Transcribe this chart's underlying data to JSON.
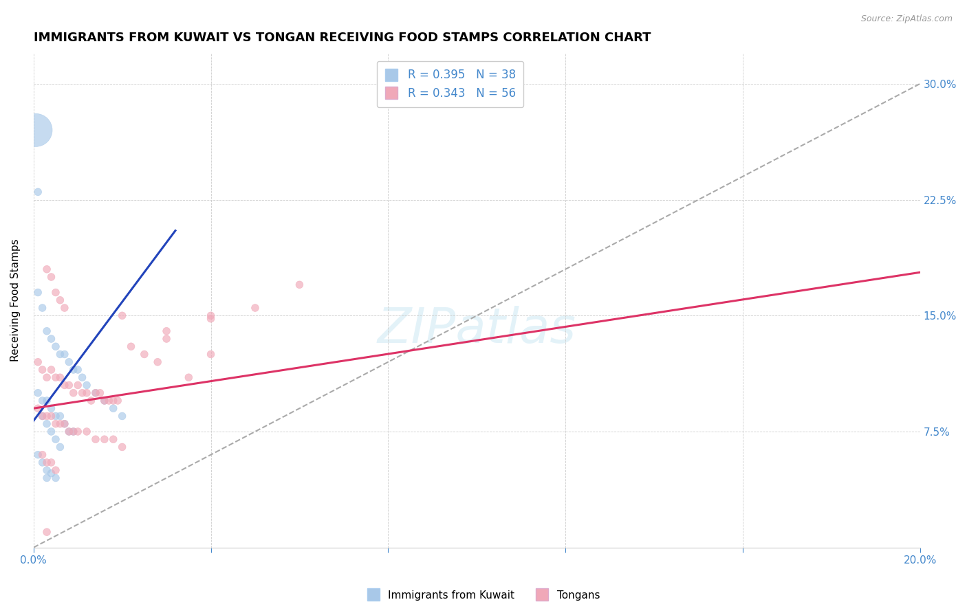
{
  "title": "IMMIGRANTS FROM KUWAIT VS TONGAN RECEIVING FOOD STAMPS CORRELATION CHART",
  "source": "Source: ZipAtlas.com",
  "ylabel": "Receiving Food Stamps",
  "xlim": [
    0.0,
    0.2
  ],
  "ylim": [
    0.0,
    0.32
  ],
  "x_ticks": [
    0.0,
    0.04,
    0.08,
    0.12,
    0.16,
    0.2
  ],
  "y_ticks": [
    0.0,
    0.075,
    0.15,
    0.225,
    0.3
  ],
  "y_tick_labels_right": [
    "",
    "7.5%",
    "15.0%",
    "22.5%",
    "30.0%"
  ],
  "grid_color": "#cccccc",
  "background_color": "#ffffff",
  "kuwait_color": "#a8c8e8",
  "tongan_color": "#f0a8b8",
  "kuwait_line_color": "#2244bb",
  "tongan_line_color": "#dd3366",
  "ref_line_color": "#aaaaaa",
  "axis_label_color": "#4488cc",
  "title_fontsize": 13,
  "axis_fontsize": 11,
  "legend_fontsize": 12,
  "kuwait_r": "0.395",
  "kuwait_n": "38",
  "tongan_r": "0.343",
  "tongan_n": "56",
  "kuwait_line_x0": 0.0,
  "kuwait_line_y0": 0.082,
  "kuwait_line_x1": 0.032,
  "kuwait_line_y1": 0.205,
  "tongan_line_x0": 0.0,
  "tongan_line_y0": 0.09,
  "tongan_line_x1": 0.2,
  "tongan_line_y1": 0.178,
  "kuwait_points_x": [
    0.001,
    0.002,
    0.003,
    0.004,
    0.005,
    0.006,
    0.007,
    0.008,
    0.009,
    0.01,
    0.011,
    0.012,
    0.014,
    0.016,
    0.018,
    0.02,
    0.002,
    0.003,
    0.004,
    0.005,
    0.006,
    0.007,
    0.008,
    0.009,
    0.001,
    0.002,
    0.003,
    0.004,
    0.005,
    0.006,
    0.001,
    0.002,
    0.003,
    0.003,
    0.004,
    0.005,
    0.0005,
    0.001
  ],
  "kuwait_points_y": [
    0.165,
    0.155,
    0.14,
    0.135,
    0.13,
    0.125,
    0.125,
    0.12,
    0.115,
    0.115,
    0.11,
    0.105,
    0.1,
    0.095,
    0.09,
    0.085,
    0.095,
    0.095,
    0.09,
    0.085,
    0.085,
    0.08,
    0.075,
    0.075,
    0.1,
    0.085,
    0.08,
    0.075,
    0.07,
    0.065,
    0.06,
    0.055,
    0.05,
    0.045,
    0.048,
    0.045,
    0.27,
    0.23
  ],
  "kuwait_sizes": [
    60,
    60,
    60,
    60,
    60,
    60,
    60,
    60,
    60,
    60,
    60,
    60,
    60,
    60,
    60,
    60,
    60,
    60,
    60,
    60,
    60,
    60,
    60,
    60,
    60,
    60,
    60,
    60,
    60,
    60,
    60,
    60,
    60,
    60,
    60,
    60,
    1200,
    60
  ],
  "tongan_points_x": [
    0.001,
    0.002,
    0.003,
    0.004,
    0.005,
    0.006,
    0.007,
    0.008,
    0.009,
    0.01,
    0.011,
    0.012,
    0.013,
    0.014,
    0.015,
    0.016,
    0.017,
    0.018,
    0.019,
    0.02,
    0.022,
    0.025,
    0.028,
    0.03,
    0.035,
    0.04,
    0.05,
    0.06,
    0.001,
    0.002,
    0.003,
    0.004,
    0.005,
    0.006,
    0.007,
    0.008,
    0.009,
    0.01,
    0.012,
    0.014,
    0.016,
    0.018,
    0.02,
    0.003,
    0.004,
    0.005,
    0.006,
    0.007,
    0.002,
    0.003,
    0.004,
    0.005,
    0.003,
    0.04,
    0.04,
    0.03
  ],
  "tongan_points_y": [
    0.12,
    0.115,
    0.11,
    0.115,
    0.11,
    0.11,
    0.105,
    0.105,
    0.1,
    0.105,
    0.1,
    0.1,
    0.095,
    0.1,
    0.1,
    0.095,
    0.095,
    0.095,
    0.095,
    0.15,
    0.13,
    0.125,
    0.12,
    0.14,
    0.11,
    0.125,
    0.155,
    0.17,
    0.09,
    0.085,
    0.085,
    0.085,
    0.08,
    0.08,
    0.08,
    0.075,
    0.075,
    0.075,
    0.075,
    0.07,
    0.07,
    0.07,
    0.065,
    0.18,
    0.175,
    0.165,
    0.16,
    0.155,
    0.06,
    0.055,
    0.055,
    0.05,
    0.01,
    0.15,
    0.148,
    0.135
  ],
  "tongan_sizes": [
    60,
    60,
    60,
    60,
    60,
    60,
    60,
    60,
    60,
    60,
    60,
    60,
    60,
    60,
    60,
    60,
    60,
    60,
    60,
    60,
    60,
    60,
    60,
    60,
    60,
    60,
    60,
    60,
    60,
    60,
    60,
    60,
    60,
    60,
    60,
    60,
    60,
    60,
    60,
    60,
    60,
    60,
    60,
    60,
    60,
    60,
    60,
    60,
    60,
    60,
    60,
    60,
    60,
    60,
    60,
    60
  ]
}
